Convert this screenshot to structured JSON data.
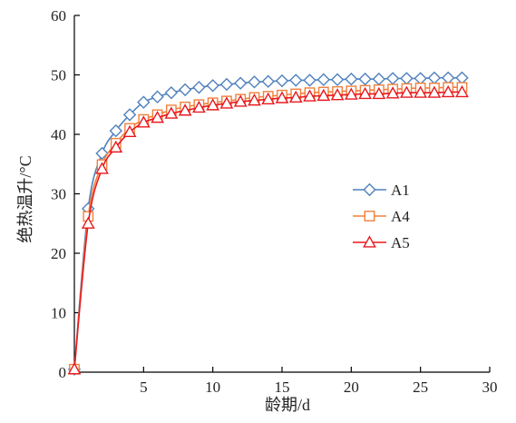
{
  "chart_data": {
    "type": "line",
    "xlabel": "龄期/d",
    "ylabel": "绝热温升/°C",
    "xlim": [
      0,
      30
    ],
    "ylim": [
      0,
      60
    ],
    "xticks": [
      "5",
      "10",
      "15",
      "20",
      "25",
      "30"
    ],
    "yticks": [
      "0",
      "10",
      "20",
      "30",
      "40",
      "50",
      "60"
    ],
    "grid": false,
    "legend_position": "right-center",
    "series": [
      {
        "name": "A1",
        "color": "#4f81bd",
        "marker": "diamond",
        "x": [
          0,
          1,
          2,
          3,
          4,
          5,
          6,
          7,
          8,
          9,
          10,
          11,
          12,
          13,
          14,
          15,
          16,
          17,
          18,
          19,
          20,
          21,
          22,
          23,
          24,
          25,
          26,
          27,
          28
        ],
        "y": [
          0.5,
          27.5,
          36.8,
          40.6,
          43.3,
          45.4,
          46.3,
          47.0,
          47.5,
          47.9,
          48.2,
          48.4,
          48.6,
          48.8,
          48.9,
          49.0,
          49.1,
          49.1,
          49.2,
          49.2,
          49.3,
          49.3,
          49.3,
          49.4,
          49.4,
          49.4,
          49.5,
          49.5,
          49.5
        ]
      },
      {
        "name": "A4",
        "color": "#f0803c",
        "marker": "square",
        "x": [
          0,
          1,
          2,
          3,
          4,
          5,
          6,
          7,
          8,
          9,
          10,
          11,
          12,
          13,
          14,
          15,
          16,
          17,
          18,
          19,
          20,
          21,
          22,
          23,
          24,
          25,
          26,
          27,
          28
        ],
        "y": [
          0.5,
          26.2,
          34.9,
          38.5,
          41.0,
          42.5,
          43.3,
          44.1,
          44.6,
          45.0,
          45.3,
          45.6,
          45.9,
          46.2,
          46.4,
          46.6,
          46.8,
          47.0,
          47.1,
          47.2,
          47.3,
          47.4,
          47.5,
          47.6,
          47.7,
          47.8,
          47.8,
          47.9,
          47.9
        ]
      },
      {
        "name": "A5",
        "color": "#e8191e",
        "marker": "triangle",
        "x": [
          0,
          1,
          2,
          3,
          4,
          5,
          6,
          7,
          8,
          9,
          10,
          11,
          12,
          13,
          14,
          15,
          16,
          17,
          18,
          19,
          20,
          21,
          22,
          23,
          24,
          25,
          26,
          27,
          28
        ],
        "y": [
          0.5,
          25.0,
          34.2,
          37.8,
          40.4,
          42.0,
          42.8,
          43.5,
          44.0,
          44.5,
          44.9,
          45.2,
          45.5,
          45.7,
          45.9,
          46.1,
          46.2,
          46.4,
          46.5,
          46.6,
          46.7,
          46.8,
          46.8,
          46.9,
          47.0,
          47.0,
          47.0,
          47.1,
          47.1
        ]
      }
    ]
  }
}
